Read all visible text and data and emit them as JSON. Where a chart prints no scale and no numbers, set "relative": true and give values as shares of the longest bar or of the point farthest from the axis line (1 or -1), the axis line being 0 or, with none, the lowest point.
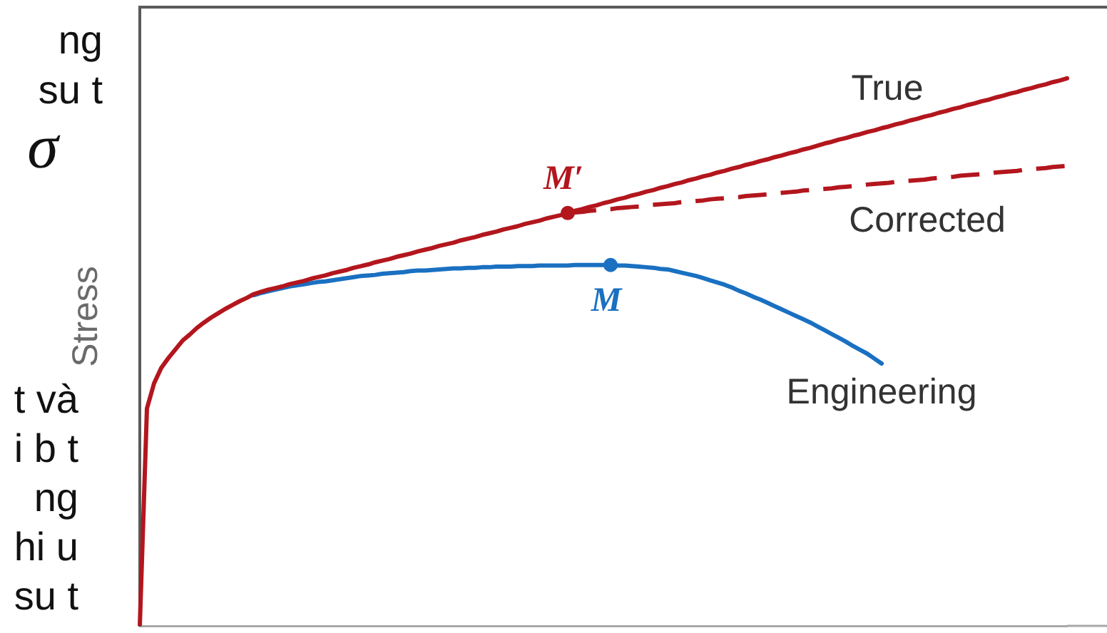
{
  "chart_data": {
    "type": "line",
    "ylabel": "Stress",
    "relative": true,
    "marker": "none",
    "annotations": [
      "ng\nsu t",
      "σ",
      "t và\ni b t\nng\nhi u\nsu t"
    ],
    "categories": [
      null,
      null,
      null,
      null,
      null,
      null,
      null,
      null,
      null,
      null,
      null,
      null,
      null,
      null,
      null,
      null,
      null,
      null,
      null,
      null,
      null,
      null,
      null,
      null,
      null,
      null,
      null,
      null,
      null,
      null,
      null,
      null,
      null,
      null,
      null,
      null,
      null,
      null,
      null,
      null,
      null,
      null,
      null,
      null,
      null,
      null,
      null,
      null,
      null,
      null,
      null,
      null,
      null,
      null,
      null,
      null,
      null,
      null,
      null,
      null,
      null,
      null,
      null,
      null,
      null,
      null,
      null,
      null,
      null,
      null,
      null,
      null,
      null,
      null,
      null,
      null,
      null,
      null,
      null,
      null,
      null,
      null,
      null,
      null,
      null,
      null,
      null,
      null,
      null,
      null,
      null,
      null,
      null,
      null,
      null,
      null,
      null,
      null,
      null,
      null,
      null,
      null,
      null,
      null,
      null,
      null,
      null,
      null,
      null,
      null,
      null,
      null,
      null,
      null,
      null,
      null,
      null,
      null,
      null,
      null,
      null,
      null,
      null,
      null,
      null,
      null,
      null,
      null,
      null,
      null,
      null
    ],
    "series": [
      {
        "name": "True",
        "color": "#b3161d",
        "values": [
          0,
          0.397,
          0.443,
          0.471,
          0.489,
          0.505,
          0.521,
          0.532,
          0.544,
          0.554,
          0.563,
          0.571,
          0.579,
          0.586,
          0.593,
          0.599,
          0.606,
          0.61,
          0.614,
          0.617,
          0.62,
          0.624,
          0.627,
          0.63,
          0.634,
          0.637,
          0.64,
          0.644,
          0.647,
          0.65,
          0.654,
          0.657,
          0.66,
          0.664,
          0.667,
          0.67,
          0.674,
          0.677,
          0.68,
          0.684,
          0.687,
          0.69,
          0.694,
          0.697,
          0.7,
          0.704,
          0.707,
          0.71,
          0.714,
          0.717,
          0.72,
          0.724,
          0.727,
          0.73,
          0.734,
          0.737,
          0.74,
          0.744,
          0.747,
          0.75,
          0.754,
          0.758,
          0.761,
          0.765,
          0.768,
          0.772,
          0.775,
          0.779,
          0.782,
          0.786,
          0.789,
          0.793,
          0.796,
          0.8,
          0.803,
          0.807,
          0.81,
          0.814,
          0.817,
          0.821,
          0.824,
          0.828,
          0.831,
          0.835,
          0.838,
          0.842,
          0.845,
          0.849,
          0.852,
          0.856,
          0.859,
          0.863,
          0.866,
          0.87,
          0.873,
          0.877,
          0.881,
          0.884,
          0.888,
          0.891,
          0.895,
          0.898,
          0.902,
          0.905,
          0.909,
          0.912,
          0.916,
          0.919,
          0.923,
          0.926,
          0.93,
          0.933,
          0.937,
          0.94,
          0.944,
          0.947,
          0.951,
          0.954,
          0.958,
          0.961,
          0.965,
          0.968,
          0.972,
          0.975,
          0.979,
          0.982,
          0.986,
          0.989,
          0.993,
          0.996,
          1
        ]
      },
      {
        "name": "Corrected",
        "color": "#b3161d",
        "line_style": "dashed",
        "values": [
          null,
          null,
          null,
          null,
          null,
          null,
          null,
          null,
          null,
          null,
          null,
          null,
          null,
          null,
          null,
          null,
          null,
          null,
          null,
          null,
          null,
          null,
          null,
          null,
          null,
          null,
          null,
          null,
          null,
          null,
          null,
          null,
          null,
          null,
          null,
          null,
          null,
          null,
          null,
          null,
          null,
          null,
          null,
          null,
          null,
          null,
          null,
          null,
          null,
          null,
          null,
          null,
          null,
          null,
          null,
          null,
          null,
          null,
          null,
          null,
          0.754,
          0.755,
          0.756,
          0.758,
          0.759,
          0.76,
          0.761,
          0.763,
          0.764,
          0.765,
          0.766,
          0.768,
          0.769,
          0.77,
          0.771,
          0.772,
          0.774,
          0.775,
          0.776,
          0.777,
          0.779,
          0.78,
          0.781,
          0.782,
          0.783,
          0.785,
          0.786,
          0.787,
          0.788,
          0.79,
          0.791,
          0.792,
          0.793,
          0.795,
          0.796,
          0.797,
          0.798,
          0.799,
          0.801,
          0.802,
          0.803,
          0.804,
          0.806,
          0.807,
          0.808,
          0.809,
          0.811,
          0.812,
          0.813,
          0.814,
          0.815,
          0.817,
          0.818,
          0.819,
          0.82,
          0.822,
          0.823,
          0.824,
          0.825,
          0.826,
          0.828,
          0.829,
          0.83,
          0.831,
          0.833,
          0.834,
          0.835,
          0.836,
          0.838,
          0.839,
          0.84
        ]
      },
      {
        "name": "Engineering",
        "color": "#1a70c1",
        "values": [
          null,
          null,
          null,
          null,
          null,
          null,
          null,
          null,
          null,
          null,
          null,
          null,
          null,
          null,
          null,
          null,
          0.604,
          0.608,
          0.611,
          0.614,
          0.617,
          0.62,
          0.622,
          0.624,
          0.626,
          0.628,
          0.629,
          0.631,
          0.633,
          0.635,
          0.637,
          0.639,
          0.64,
          0.641,
          0.643,
          0.644,
          0.645,
          0.646,
          0.648,
          0.649,
          0.649,
          0.65,
          0.651,
          0.652,
          0.653,
          0.653,
          0.654,
          0.654,
          0.655,
          0.655,
          0.656,
          0.656,
          0.656,
          0.657,
          0.657,
          0.657,
          0.658,
          0.658,
          0.658,
          0.658,
          0.658,
          0.659,
          0.659,
          0.659,
          0.659,
          0.659,
          0.659,
          0.658,
          0.658,
          0.657,
          0.656,
          0.655,
          0.654,
          0.652,
          0.651,
          0.648,
          0.645,
          0.642,
          0.639,
          0.635,
          0.631,
          0.627,
          0.623,
          0.618,
          0.612,
          0.607,
          0.601,
          0.596,
          0.59,
          0.584,
          0.578,
          0.572,
          0.566,
          0.56,
          0.554,
          0.547,
          0.54,
          0.533,
          0.526,
          0.519,
          0.511,
          0.504,
          0.497,
          0.488,
          0.479,
          null,
          null,
          null,
          null,
          null,
          null,
          null,
          null,
          null,
          null,
          null,
          null,
          null,
          null,
          null,
          null,
          null,
          null,
          null,
          null,
          null,
          null,
          null,
          null,
          null,
          null
        ]
      },
      {
        "name": "M′",
        "marker": "circle",
        "color": "#b3161d",
        "values": [
          null,
          null,
          null,
          null,
          null,
          null,
          null,
          null,
          null,
          null,
          null,
          null,
          null,
          null,
          null,
          null,
          null,
          null,
          null,
          null,
          null,
          null,
          null,
          null,
          null,
          null,
          null,
          null,
          null,
          null,
          null,
          null,
          null,
          null,
          null,
          null,
          null,
          null,
          null,
          null,
          null,
          null,
          null,
          null,
          null,
          null,
          null,
          null,
          null,
          null,
          null,
          null,
          null,
          null,
          null,
          null,
          null,
          null,
          null,
          null,
          0.754,
          null,
          null,
          null,
          null,
          null,
          null,
          null,
          null,
          null,
          null,
          null,
          null,
          null,
          null,
          null,
          null,
          null,
          null,
          null,
          null,
          null,
          null,
          null,
          null,
          null,
          null,
          null,
          null,
          null,
          null,
          null,
          null,
          null,
          null,
          null,
          null,
          null,
          null,
          null,
          null,
          null,
          null,
          null,
          null,
          null,
          null,
          null,
          null,
          null,
          null,
          null,
          null,
          null,
          null,
          null,
          null,
          null,
          null,
          null,
          null,
          null,
          null,
          null,
          null,
          null,
          null,
          null,
          null,
          null,
          null
        ]
      },
      {
        "name": "M",
        "marker": "circle",
        "color": "#1a70c1",
        "values": [
          null,
          null,
          null,
          null,
          null,
          null,
          null,
          null,
          null,
          null,
          null,
          null,
          null,
          null,
          null,
          null,
          null,
          null,
          null,
          null,
          null,
          null,
          null,
          null,
          null,
          null,
          null,
          null,
          null,
          null,
          null,
          null,
          null,
          null,
          null,
          null,
          null,
          null,
          null,
          null,
          null,
          null,
          null,
          null,
          null,
          null,
          null,
          null,
          null,
          null,
          null,
          null,
          null,
          null,
          null,
          null,
          null,
          null,
          null,
          null,
          null,
          null,
          null,
          null,
          null,
          null,
          0.659,
          null,
          null,
          null,
          null,
          null,
          null,
          null,
          null,
          null,
          null,
          null,
          null,
          null,
          null,
          null,
          null,
          null,
          null,
          null,
          null,
          null,
          null,
          null,
          null,
          null,
          null,
          null,
          null,
          null,
          null,
          null,
          null,
          null,
          null,
          null,
          null,
          null,
          null,
          null,
          null,
          null,
          null,
          null,
          null,
          null,
          null,
          null,
          null,
          null,
          null,
          null,
          null,
          null,
          null,
          null,
          null,
          null,
          null,
          null,
          null,
          null,
          null,
          null,
          null
        ]
      }
    ]
  }
}
